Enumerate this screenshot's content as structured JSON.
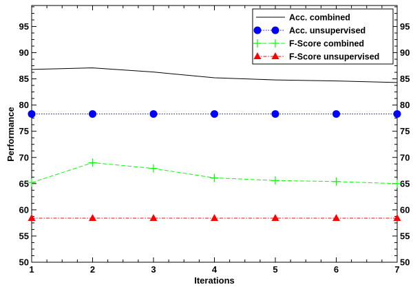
{
  "chart_data": {
    "type": "line",
    "xlabel": "Iterations",
    "ylabel": "Performance",
    "xlim": [
      1,
      7
    ],
    "ylim": [
      50,
      99
    ],
    "xticks": [
      1,
      2,
      3,
      4,
      5,
      6,
      7
    ],
    "yticks": [
      50,
      55,
      60,
      65,
      70,
      75,
      80,
      85,
      90,
      95
    ],
    "grid": false,
    "mirror_y_ticks_right": true,
    "legend_position": "top-right",
    "x": [
      1,
      2,
      3,
      4,
      5,
      6,
      7
    ],
    "series": [
      {
        "name": "Acc. combined",
        "values": [
          86.8,
          87.1,
          86.3,
          85.2,
          84.8,
          84.6,
          84.3
        ],
        "color": "#000000",
        "line_style": "solid",
        "marker": "none"
      },
      {
        "name": "Acc. unsupervised",
        "values": [
          78.3,
          78.3,
          78.3,
          78.3,
          78.3,
          78.3,
          78.3
        ],
        "color": "#0000ff",
        "line_style": "dotted",
        "marker": "circle"
      },
      {
        "name": "F-Score combined",
        "values": [
          65.2,
          69.0,
          67.9,
          66.1,
          65.6,
          65.4,
          65.0
        ],
        "color": "#00ff00",
        "line_style": "dashed",
        "marker": "plus"
      },
      {
        "name": "F-Score unsupervised",
        "values": [
          58.4,
          58.4,
          58.4,
          58.4,
          58.4,
          58.4,
          58.4
        ],
        "color": "#ff0000",
        "line_style": "dashdot",
        "marker": "triangle"
      }
    ]
  }
}
